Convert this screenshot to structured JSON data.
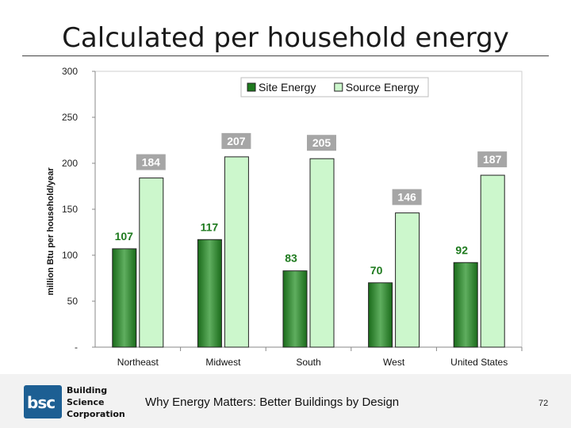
{
  "slide": {
    "title": "Calculated per household energy",
    "footer": "Why Energy Matters: Better Buildings by Design",
    "page_number": "72"
  },
  "logo": {
    "abbr": "bsc",
    "lines": [
      "Building",
      "Science",
      "Corporation"
    ]
  },
  "chart_data": {
    "type": "bar",
    "categories": [
      "Northeast",
      "Midwest",
      "South",
      "West",
      "United States"
    ],
    "series": [
      {
        "name": "Site Energy",
        "values": [
          107,
          117,
          83,
          70,
          92
        ],
        "color": "#1e7a1e"
      },
      {
        "name": "Source Energy",
        "values": [
          184,
          207,
          205,
          146,
          187
        ],
        "color": "#ccf7cc"
      }
    ],
    "ylabel": "million Btu per household/year",
    "ylim": [
      0,
      300
    ],
    "yticks": [
      0,
      50,
      100,
      150,
      200,
      250,
      300
    ],
    "ytick_labels": [
      "-",
      "50",
      "100",
      "150",
      "200",
      "250",
      "300"
    ],
    "legend_position": "top-right",
    "grid": false
  }
}
